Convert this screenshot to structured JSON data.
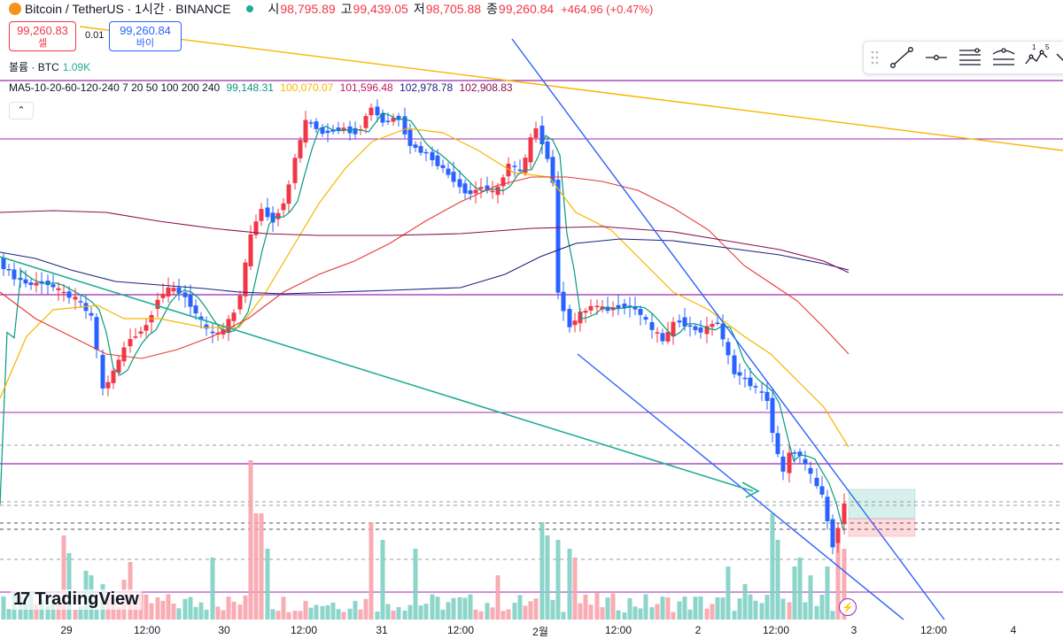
{
  "header": {
    "symbol_title": "Bitcoin / TetherUS · 1시간 · BINANCE",
    "open_label": "시",
    "open_value": "98,795.89",
    "high_label": "고",
    "high_value": "99,439.05",
    "low_label": "저",
    "low_value": "98,705.88",
    "close_label": "종",
    "close_value": "99,260.84",
    "change": "+464.96 (+0.47%)"
  },
  "trade": {
    "sell_price": "99,260.83",
    "sell_label": "셀",
    "spread": "0.01",
    "buy_price": "99,260.84",
    "buy_label": "바이"
  },
  "volume": {
    "label": "볼륨 · BTC",
    "value": "1.09K"
  },
  "ma_legend": {
    "label": "MA5-10-20-60-120-240 7 20 50 100 200 240",
    "values": [
      {
        "text": "99,148.31",
        "color": "#089981"
      },
      {
        "text": "100,070.07",
        "color": "#f7b500"
      },
      {
        "text": "101,596.48",
        "color": "#c2185b"
      },
      {
        "text": "102,978.78",
        "color": "#1a237e"
      },
      {
        "text": "102,908.83",
        "color": "#880e4f"
      }
    ]
  },
  "collapse_icon": "chevron-up-icon",
  "toolbar_icons": [
    "drag-handle-icon",
    "trend-line-icon",
    "horizontal-ray-icon",
    "parallel-channel-icon",
    "fib-retracement-icon",
    "elliott-wave-icon"
  ],
  "toolbar_text": {
    "wave_1": "1",
    "wave_5": "5"
  },
  "logo_text": "TradingView",
  "x_axis_labels": [
    "29",
    "12:00",
    "30",
    "12:00",
    "31",
    "12:00",
    "2월",
    "12:00",
    "2",
    "12:00",
    "3",
    "12:00",
    "4"
  ],
  "colors": {
    "up": "#089981",
    "down": "#f23645",
    "up_candle": "#2962ff",
    "down_candle": "#f23645",
    "vol_up": "#7fd0c4",
    "vol_down": "#f7a3ab",
    "purple": "#9c27b0",
    "yellow": "#f7b500",
    "trend": "#2962ff",
    "teal": "#22ab94"
  },
  "chart_data": {
    "type": "candlestick",
    "interval": "1h",
    "x_labels": [
      "29",
      "12:00",
      "30",
      "12:00",
      "31",
      "12:00",
      "2월",
      "12:00",
      "2",
      "12:00",
      "3",
      "12:00",
      "4"
    ],
    "last": {
      "open": 98795.89,
      "high": 99439.05,
      "low": 98705.88,
      "close": 99260.84
    },
    "moving_averages": [
      99148.31,
      100070.07,
      101596.48,
      102978.78,
      102908.83
    ]
  }
}
